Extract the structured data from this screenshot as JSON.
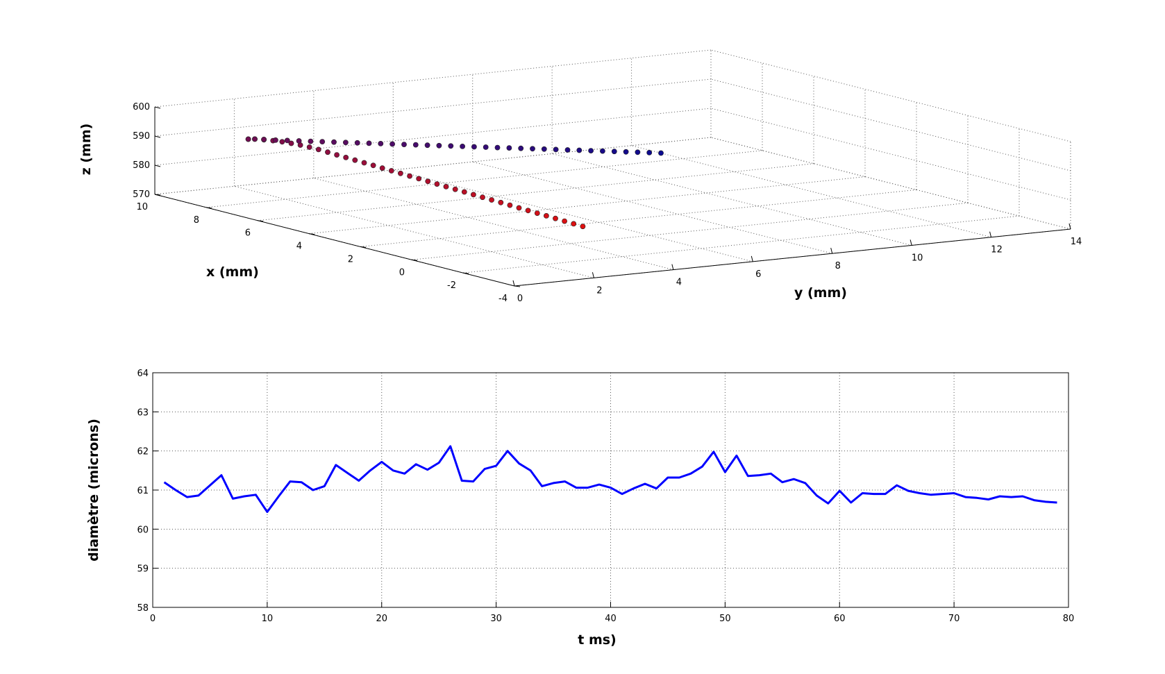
{
  "chart_data": [
    {
      "type": "scatter3d",
      "title": "",
      "xlabel": "x (mm)",
      "ylabel": "y (mm)",
      "zlabel": "z (mm)",
      "xlim": [
        -4,
        10
      ],
      "ylim": [
        0,
        14
      ],
      "zlim": [
        570,
        600
      ],
      "xticks": [
        -4,
        -2,
        0,
        2,
        4,
        6,
        8,
        10
      ],
      "yticks": [
        0,
        2,
        4,
        6,
        8,
        10,
        12,
        14
      ],
      "zticks": [
        570,
        580,
        590,
        600
      ],
      "grid": true,
      "marker_color_start": "#0a0a90",
      "marker_color_end": "#e01010",
      "series": [
        {
          "x": [
            0.3,
            0.5,
            0.7,
            0.9,
            1.1,
            1.3,
            1.5,
            1.7,
            1.9,
            2.1,
            2.3,
            2.5,
            2.7,
            2.9,
            3.1,
            3.3,
            3.5,
            3.7,
            3.9,
            4.1,
            4.3,
            4.5,
            4.7,
            4.9,
            5.1,
            5.3,
            5.5,
            5.7,
            5.9,
            6.1,
            6.3,
            6.5,
            6.7,
            6.9,
            7.1,
            7.3,
            7.5,
            7.6,
            7.6,
            7.5,
            7.3,
            7.0,
            6.7,
            6.4,
            6.1,
            5.8,
            5.5,
            5.2,
            4.9,
            4.6,
            4.3,
            4.0,
            3.7,
            3.4,
            3.1,
            2.8,
            2.5,
            2.2,
            1.9,
            1.6,
            1.3,
            1.0,
            0.7,
            0.4,
            0.1,
            -0.2,
            -0.5,
            -0.8,
            -1.1,
            -1.4,
            -1.7,
            -2.0,
            -2.3,
            -2.6,
            -2.9
          ],
          "y": [
            4.5,
            4.4,
            4.3,
            4.2,
            4.1,
            4.0,
            3.9,
            3.8,
            3.7,
            3.6,
            3.5,
            3.4,
            3.3,
            3.2,
            3.1,
            3.0,
            2.9,
            2.8,
            2.7,
            2.6,
            2.5,
            2.4,
            2.3,
            2.2,
            2.1,
            2.0,
            1.9,
            1.8,
            1.7,
            1.6,
            1.5,
            1.4,
            1.3,
            1.2,
            1.1,
            1.0,
            0.9,
            0.8,
            0.8,
            0.9,
            1.0,
            1.1,
            1.2,
            1.3,
            1.4,
            1.5,
            1.6,
            1.7,
            1.8,
            1.9,
            2.0,
            2.1,
            2.2,
            2.3,
            2.4,
            2.5,
            2.6,
            2.7,
            2.8,
            2.9,
            3.0,
            3.1,
            3.2,
            3.3,
            3.4,
            3.5,
            3.6,
            3.7,
            3.8,
            3.9,
            4.0,
            4.1,
            4.2,
            4.3,
            4.4
          ],
          "z": [
            574.5,
            575.1,
            575.7,
            576.3,
            576.9,
            577.5,
            578.1,
            578.7,
            579.3,
            579.9,
            580.5,
            581.1,
            581.7,
            582.3,
            582.9,
            583.5,
            584.1,
            584.7,
            585.3,
            585.9,
            586.5,
            587.1,
            587.7,
            588.3,
            588.9,
            589.5,
            590.1,
            590.7,
            591.3,
            591.9,
            592.4,
            592.8,
            593.1,
            593.3,
            593.4,
            593.4,
            593.3,
            593.2,
            593.2,
            593.3,
            593.5,
            593.8,
            594.2,
            594.6,
            595.0,
            595.4,
            595.8,
            596.2,
            596.6,
            597.0,
            597.4,
            597.8,
            598.2,
            598.6,
            599.0,
            599.4,
            599.8,
            600.2,
            600.6,
            601.0,
            601.4,
            601.8,
            602.2,
            602.6,
            603.0,
            603.4,
            603.8,
            604.2,
            604.6,
            605.0,
            605.4,
            605.8,
            606.2,
            606.6,
            607.0
          ]
        }
      ]
    },
    {
      "type": "line",
      "title": "",
      "xlabel": "t ms)",
      "ylabel": "diamètre (microns)",
      "xlim": [
        0,
        80
      ],
      "ylim": [
        58,
        64
      ],
      "xticks": [
        0,
        10,
        20,
        30,
        40,
        50,
        60,
        70,
        80
      ],
      "yticks": [
        58,
        59,
        60,
        61,
        62,
        63,
        64
      ],
      "grid": true,
      "line_color": "#0000ff",
      "series": [
        {
          "x": [
            1,
            2,
            3,
            4,
            5,
            6,
            7,
            8,
            9,
            10,
            11,
            12,
            13,
            14,
            15,
            16,
            17,
            18,
            19,
            20,
            21,
            22,
            23,
            24,
            25,
            26,
            27,
            28,
            29,
            30,
            31,
            32,
            33,
            34,
            35,
            36,
            37,
            38,
            39,
            40,
            41,
            42,
            43,
            44,
            45,
            46,
            47,
            48,
            49,
            50,
            51,
            52,
            53,
            54,
            55,
            56,
            57,
            58,
            59,
            60,
            61,
            62,
            63,
            64,
            65,
            66,
            67,
            68,
            69,
            70,
            71,
            72,
            73,
            74,
            75,
            76,
            77,
            78,
            79
          ],
          "y": [
            61.2,
            61.0,
            60.82,
            60.86,
            61.12,
            61.38,
            60.78,
            60.84,
            60.88,
            60.44,
            60.84,
            61.22,
            61.2,
            61.0,
            61.1,
            61.64,
            61.44,
            61.24,
            61.5,
            61.72,
            61.5,
            61.42,
            61.66,
            61.52,
            61.7,
            62.12,
            61.24,
            61.22,
            61.54,
            61.62,
            62.0,
            61.68,
            61.5,
            61.1,
            61.18,
            61.22,
            61.06,
            61.06,
            61.14,
            61.06,
            60.9,
            61.04,
            61.16,
            61.04,
            61.32,
            61.32,
            61.42,
            61.6,
            61.98,
            61.46,
            61.88,
            61.36,
            61.38,
            61.42,
            61.2,
            61.28,
            61.18,
            60.86,
            60.66,
            60.98,
            60.68,
            60.92,
            60.9,
            60.9,
            61.12,
            60.98,
            60.92,
            60.88,
            60.9,
            60.92,
            60.82,
            60.8,
            60.76,
            60.84,
            60.82,
            60.84,
            60.74,
            60.7,
            60.68
          ]
        }
      ]
    }
  ]
}
